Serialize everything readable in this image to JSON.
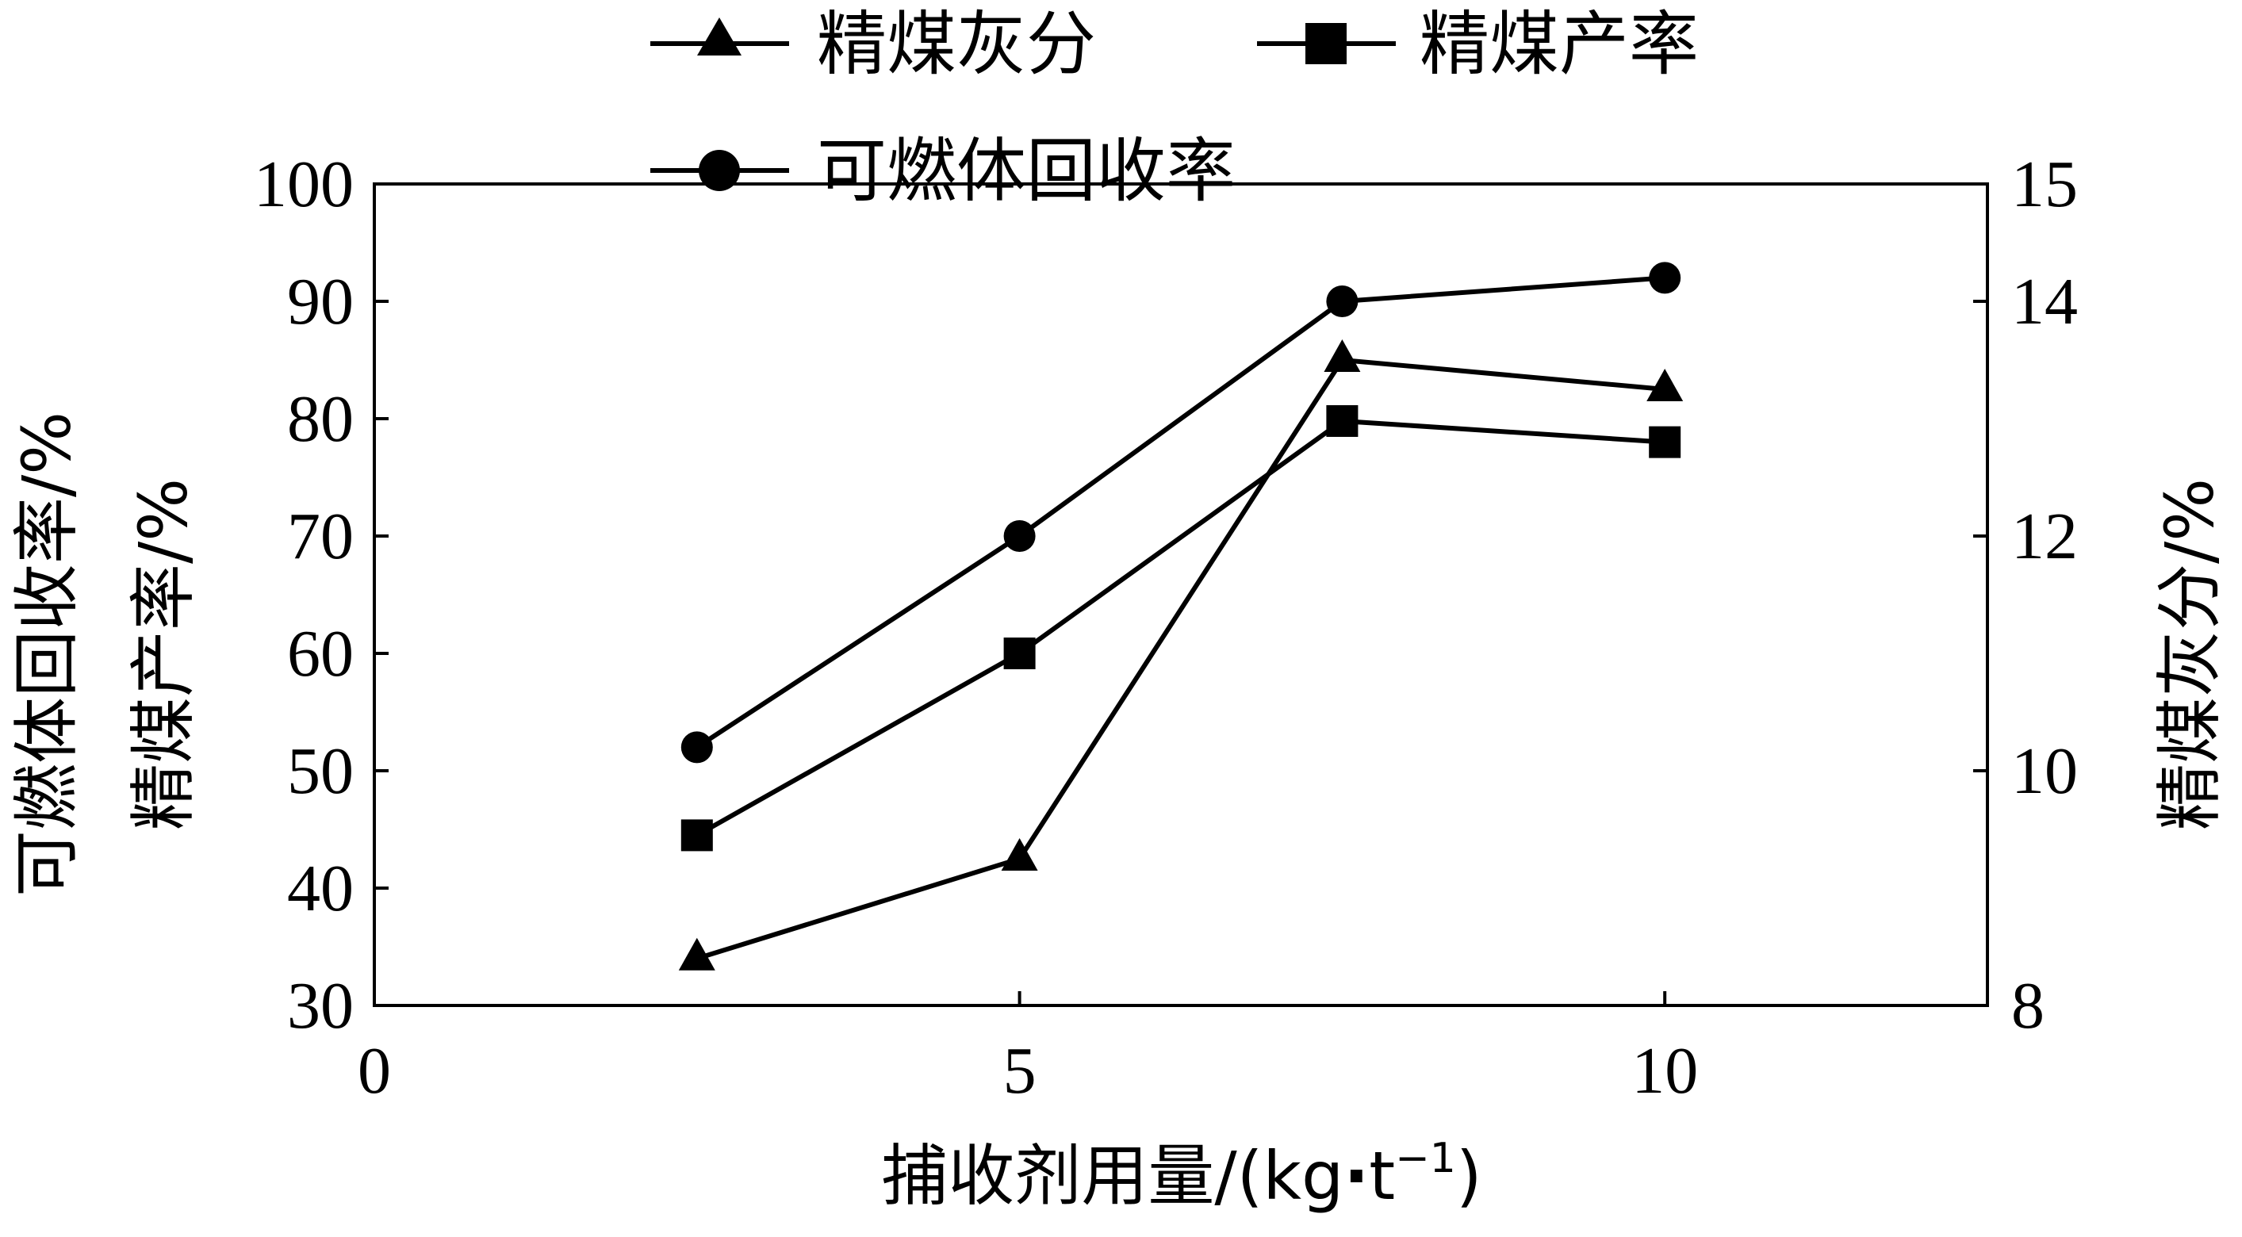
{
  "chart_data": {
    "type": "line",
    "xlabel_main": "捕收剂用量/(kg",
    "xlabel_dot": "·",
    "xlabel_t": "t",
    "xlabel_sup": "−1",
    "xlabel_end": ")",
    "ylabel_left_1": "可燃体回收率/%",
    "ylabel_left_2": "精煤产率/%",
    "ylabel_right": "精煤灰分/%",
    "xlim": [
      0,
      12.5
    ],
    "ylim_left": [
      30,
      100
    ],
    "ylim_right": [
      8,
      15
    ],
    "xticks": [
      0,
      5,
      10
    ],
    "yticks_left": [
      30,
      40,
      50,
      60,
      70,
      80,
      90,
      100
    ],
    "yticks_right": [
      8,
      10,
      12,
      14,
      15
    ],
    "x": [
      2.5,
      5,
      7.5,
      10
    ],
    "legend_placement": "top",
    "series": [
      {
        "name": "精煤灰分",
        "axis": "right",
        "marker": "triangle",
        "values": [
          8.4,
          9.25,
          13.5,
          13.25
        ]
      },
      {
        "name": "精煤产率",
        "axis": "left",
        "marker": "square",
        "values": [
          44.5,
          60,
          79.8,
          78
        ]
      },
      {
        "name": "可燃体回收率",
        "axis": "left",
        "marker": "circle",
        "values": [
          52,
          70,
          90,
          92
        ]
      }
    ]
  }
}
